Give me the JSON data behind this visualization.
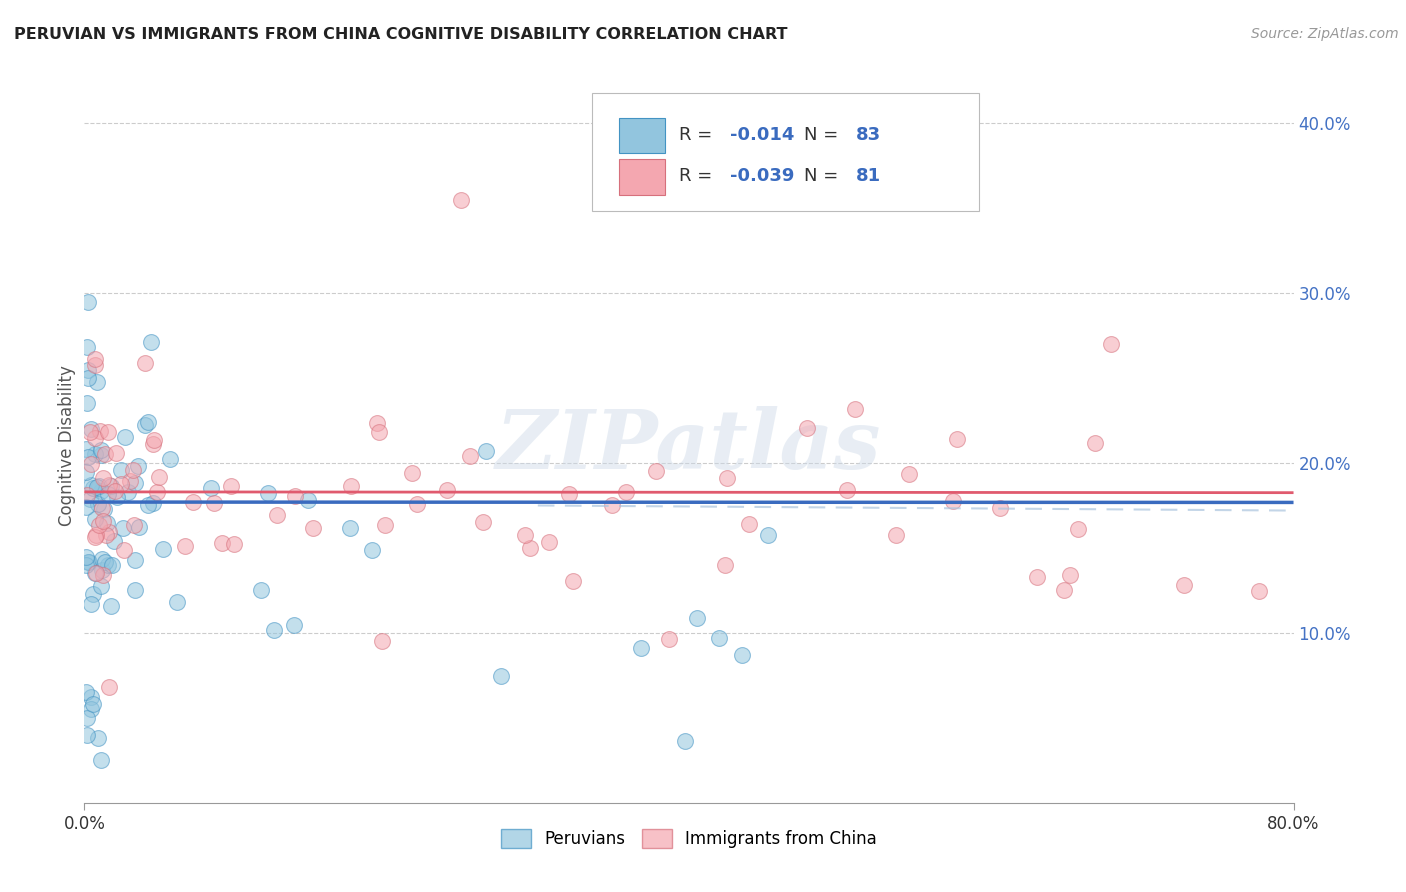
{
  "title": "PERUVIAN VS IMMIGRANTS FROM CHINA COGNITIVE DISABILITY CORRELATION CHART",
  "source": "Source: ZipAtlas.com",
  "ylabel": "Cognitive Disability",
  "legend_label1": "Peruvians",
  "legend_label2": "Immigrants from China",
  "R1": -0.014,
  "N1": 83,
  "R2": -0.039,
  "N2": 81,
  "color1": "#92c5de",
  "color2": "#f4a7b0",
  "edge_color1": "#4393c3",
  "edge_color2": "#d6707c",
  "line_color1": "#3a6bbf",
  "line_color2": "#e05a6e",
  "xlim": [
    0.0,
    0.8
  ],
  "ylim": [
    0.0,
    0.42
  ],
  "xticks": [
    0.0,
    0.8
  ],
  "xticklabels": [
    "0.0%",
    "80.0%"
  ],
  "yticks_left": [],
  "yticks_right": [
    0.1,
    0.2,
    0.3,
    0.4
  ],
  "ytick_right_labels": [
    "10.0%",
    "20.0%",
    "30.0%",
    "40.0%"
  ],
  "grid_yticks": [
    0.1,
    0.2,
    0.3,
    0.4
  ],
  "background_color": "#ffffff",
  "watermark": "ZIPatlas",
  "title_color": "#222222",
  "source_color": "#999999",
  "tick_color": "#4472c4",
  "ylabel_color": "#555555"
}
